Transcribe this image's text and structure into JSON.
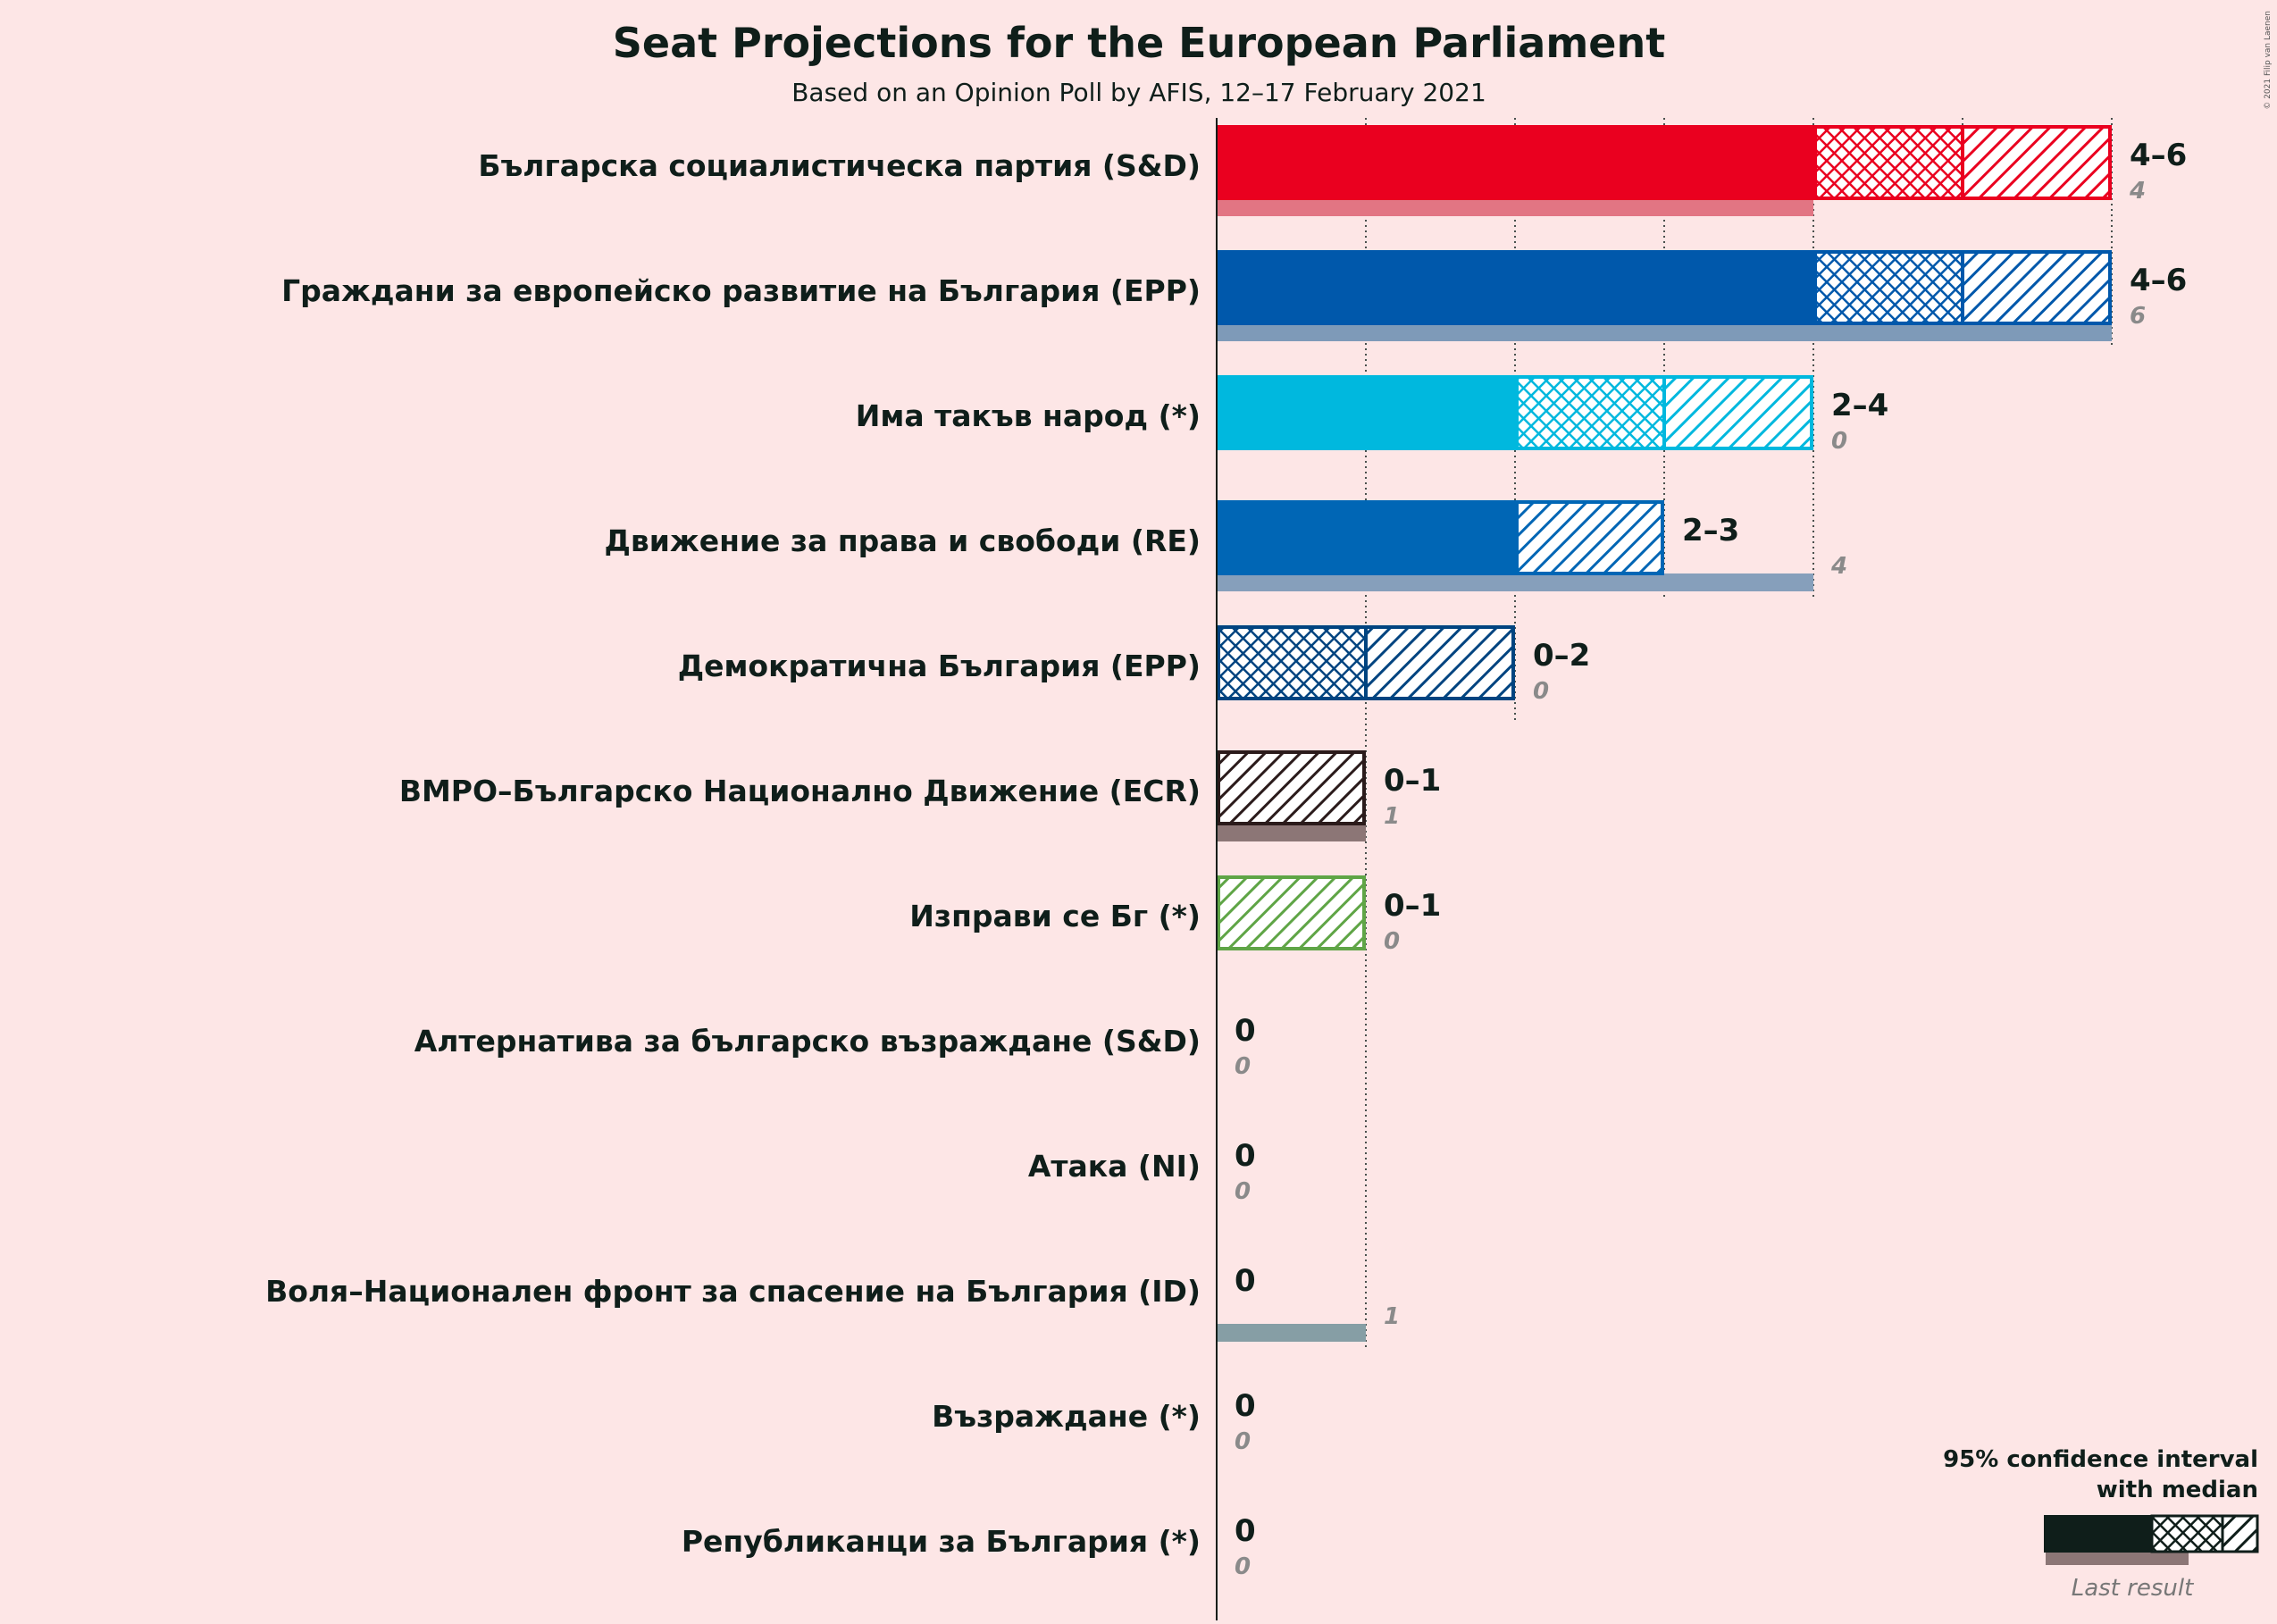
{
  "title": "Seat Projections for the European Parliament",
  "subtitle": "Based on an Opinion Poll by AFIS, 12–17 February 2021",
  "copyright": "© 2021 Filip van Laenen",
  "legend": {
    "title_line1": "95% confidence interval",
    "title_line2": "with median",
    "last_result": "Last result",
    "color": "#0f1e1a"
  },
  "chart_data": {
    "type": "bar",
    "orientation": "horizontal",
    "x_unit": "seats",
    "xlim": [
      0,
      6
    ],
    "grid_ticks": [
      1,
      2,
      3,
      4,
      5,
      6
    ],
    "rows": [
      {
        "party": "Българска социалистическа партия (S&D)",
        "low": 4,
        "median": 5,
        "high": 6,
        "range_label": "4–6",
        "last": 4,
        "last_label": "4",
        "color": "#ea001f",
        "last_color": "#e27583"
      },
      {
        "party": "Граждани за европейско развитие на България (EPP)",
        "low": 4,
        "median": 5,
        "high": 6,
        "range_label": "4–6",
        "last": 6,
        "last_label": "6",
        "color": "#0058ab",
        "last_color": "#7e9ab8"
      },
      {
        "party": "Има такъв народ (*)",
        "low": 2,
        "median": 3,
        "high": 4,
        "range_label": "2–4",
        "last": 0,
        "last_label": "0",
        "color": "#00b8de",
        "last_color": "#80c8de"
      },
      {
        "party": "Движение за права и свободи (RE)",
        "low": 2,
        "median": 2,
        "high": 3,
        "range_label": "2–3",
        "last": 4,
        "last_label": "4",
        "color": "#0066b5",
        "last_color": "#869fbb"
      },
      {
        "party": "Демократична България (EPP)",
        "low": 0,
        "median": 1,
        "high": 2,
        "range_label": "0–2",
        "last": 0,
        "last_label": "0",
        "color": "#004480",
        "last_color": "#7e90a8"
      },
      {
        "party": "ВМРО–Българско Национално Движение (ECR)",
        "low": 0,
        "median": 0,
        "high": 1,
        "range_label": "0–1",
        "last": 1,
        "last_label": "1",
        "color": "#2b1b1b",
        "last_color": "#8c7676"
      },
      {
        "party": "Изправи се Бг (*)",
        "low": 0,
        "median": 0,
        "high": 1,
        "range_label": "0–1",
        "last": 0,
        "last_label": "0",
        "color": "#5fa546",
        "last_color": "#a8cc9a"
      },
      {
        "party": "Алтернатива за българско възраждане (S&D)",
        "low": 0,
        "median": 0,
        "high": 0,
        "range_label": "0",
        "last": 0,
        "last_label": "0",
        "color": "#e2001a",
        "last_color": "#e27583"
      },
      {
        "party": "Атака (NI)",
        "low": 0,
        "median": 0,
        "high": 0,
        "range_label": "0",
        "last": 0,
        "last_label": "0",
        "color": "#555555",
        "last_color": "#999999"
      },
      {
        "party": "Воля–Национален фронт за спасение на България (ID)",
        "low": 0,
        "median": 0,
        "high": 0,
        "range_label": "0",
        "last": 1,
        "last_label": "1",
        "color": "#0a3c4f",
        "last_color": "#869ea5"
      },
      {
        "party": "Възраждане (*)",
        "low": 0,
        "median": 0,
        "high": 0,
        "range_label": "0",
        "last": 0,
        "last_label": "0",
        "color": "#555555",
        "last_color": "#999999"
      },
      {
        "party": "Републиканци за България (*)",
        "low": 0,
        "median": 0,
        "high": 0,
        "range_label": "0",
        "last": 0,
        "last_label": "0",
        "color": "#555555",
        "last_color": "#999999"
      }
    ]
  }
}
